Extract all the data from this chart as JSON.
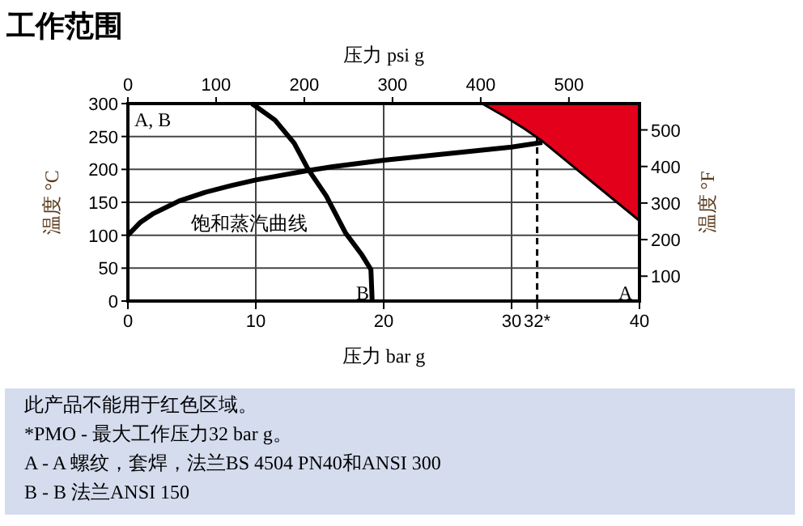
{
  "chart_data": {
    "type": "line",
    "title": "工作范围",
    "xlabel": "压力 bar g",
    "x2label": "压力 psi g",
    "ylabel": "温度 °C",
    "y2label": "温度 °F",
    "xlim": [
      0,
      40
    ],
    "xticks": [
      0,
      10,
      20,
      30,
      {
        "value": 32,
        "label": "32*"
      },
      40
    ],
    "x2lim": [
      0,
      580
    ],
    "x2ticks": [
      0,
      100,
      200,
      300,
      400,
      500
    ],
    "ylim": [
      0,
      300
    ],
    "yticks": [
      0,
      50,
      100,
      150,
      200,
      250,
      300
    ],
    "y2lim": [
      32,
      572
    ],
    "y2ticks": [
      100,
      200,
      300,
      400,
      500
    ],
    "grid": true,
    "series": [
      {
        "type": "line",
        "color": "#000000",
        "x": [
          0,
          1,
          2,
          4,
          6,
          8,
          10,
          12,
          14,
          16,
          18,
          20,
          22,
          24,
          26,
          28,
          30,
          32.4
        ],
        "values": [
          100,
          120,
          133,
          152,
          165,
          175,
          184,
          191,
          198,
          204,
          209,
          214,
          218,
          222,
          226,
          230,
          234,
          241
        ]
      },
      {
        "type": "line",
        "color": "#000000",
        "x": [
          9.7,
          11.5,
          13,
          14.1,
          15.5,
          17,
          18.3,
          19,
          19.1
        ],
        "values": [
          300,
          275,
          240,
          200,
          160,
          104,
          70,
          48,
          0
        ]
      },
      {
        "type": "area",
        "color": "#e2001a",
        "x": [
          27.7,
          29.5,
          31,
          32.4,
          40,
          40
        ],
        "values": [
          300,
          280,
          262,
          243,
          122,
          300
        ]
      }
    ],
    "ref_lines": [
      {
        "axis": "x",
        "value": 32,
        "color": "#000000",
        "line_style": "dashed"
      }
    ],
    "annotations": [
      "饱和蒸汽曲线",
      "A, B",
      "B",
      "A",
      "此产品不能用于红色区域。",
      "*PMO - 最大工作压力32 bar g。",
      "A - A 螺纹，套焊，法兰BS 4504 PN40和ANSI 300",
      "B - B 法兰ANSI 150"
    ]
  }
}
